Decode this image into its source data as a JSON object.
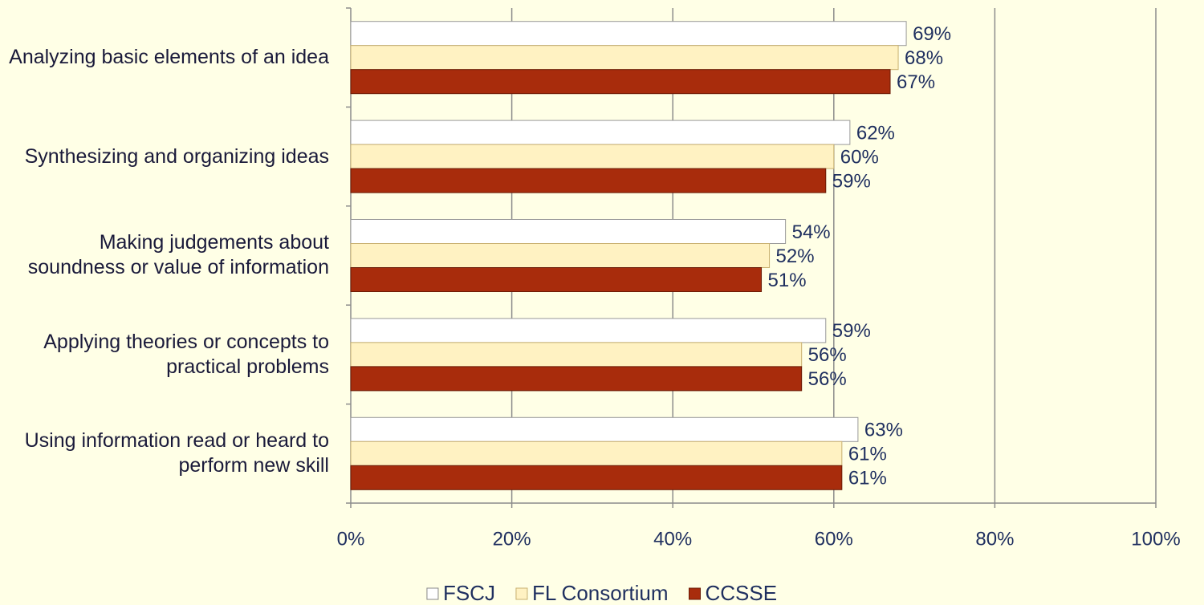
{
  "chart_data": {
    "type": "hbar",
    "categories": [
      "Analyzing basic elements of an idea",
      "Synthesizing and organizing ideas",
      "Making judgements about soundness or value of information",
      "Applying theories or concepts to practical problems",
      "Using information read or heard to perform new skill"
    ],
    "series": [
      {
        "name": "FSCJ",
        "color": "#FFFFFF",
        "values": [
          69,
          62,
          54,
          59,
          63
        ],
        "value_labels": [
          "69%",
          "62%",
          "54%",
          "59%",
          "63%"
        ]
      },
      {
        "name": "FL Consortium",
        "color": "#FFF2C2",
        "values": [
          68,
          60,
          52,
          56,
          61
        ],
        "value_labels": [
          "68%",
          "60%",
          "52%",
          "56%",
          "61%"
        ]
      },
      {
        "name": "CCSSE",
        "color": "#A82C0C",
        "values": [
          67,
          59,
          51,
          56,
          61
        ],
        "value_labels": [
          "67%",
          "59%",
          "51%",
          "56%",
          "61%"
        ]
      }
    ],
    "xlim": [
      0,
      100
    ],
    "xticks": [
      {
        "value": 0,
        "label": "0%"
      },
      {
        "value": 20,
        "label": "20%"
      },
      {
        "value": 40,
        "label": "40%"
      },
      {
        "value": 60,
        "label": "60%"
      },
      {
        "value": 80,
        "label": "80%"
      },
      {
        "value": 100,
        "label": "100%"
      }
    ],
    "grid": true,
    "legend": "bottom"
  }
}
